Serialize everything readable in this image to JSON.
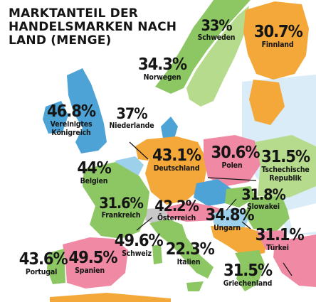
{
  "map": {
    "title": "MARKTANTEIL DER HANDELSMARKEN NACH LAND (MENGE)",
    "colors": {
      "sea": "#ffffff",
      "blue": "#4ea3d6",
      "light_blue": "#9dd0ea",
      "orange": "#f4a83a",
      "pink": "#f08aa4",
      "green": "#8cc763",
      "gray": "#c8c8c8",
      "text": "#151515"
    },
    "countries": [
      {
        "name": "Schweden",
        "value": "33%",
        "share": 33,
        "region_color": "green"
      },
      {
        "name": "Finnland",
        "value": "30.7%",
        "share": 30.7,
        "region_color": "orange"
      },
      {
        "name": "Norwegen",
        "value": "34.3%",
        "share": 34.3,
        "region_color": "green"
      },
      {
        "name": "Vereinigtes\nKönigreich",
        "value": "46.8%",
        "share": 46.8,
        "region_color": "blue"
      },
      {
        "name": "Niederlande",
        "value": "37%",
        "share": 37,
        "region_color": "orange"
      },
      {
        "name": "Belgien",
        "value": "44%",
        "share": 44,
        "region_color": "light_blue"
      },
      {
        "name": "Deutschland",
        "value": "43.1%",
        "share": 43.1,
        "region_color": "orange"
      },
      {
        "name": "Polen",
        "value": "30.6%",
        "share": 30.6,
        "region_color": "pink"
      },
      {
        "name": "Tschechische\nRepublik",
        "value": "31.5%",
        "share": 31.5,
        "region_color": "blue"
      },
      {
        "name": "Slowakei",
        "value": "31.8%",
        "share": 31.8,
        "region_color": "green"
      },
      {
        "name": "Frankreich",
        "value": "31.6%",
        "share": 31.6,
        "region_color": "green"
      },
      {
        "name": "Österreich",
        "value": "42.2%",
        "share": 42.2,
        "region_color": "pink"
      },
      {
        "name": "Ungarn",
        "value": "34.8%",
        "share": 34.8,
        "region_color": "light_blue"
      },
      {
        "name": "Schweiz",
        "value": "49.6%",
        "share": 49.6,
        "region_color": "gray"
      },
      {
        "name": "Türkei",
        "value": "31.1%",
        "share": 31.1,
        "region_color": "pink"
      },
      {
        "name": "Portugal",
        "value": "43.6%",
        "share": 43.6,
        "region_color": "green"
      },
      {
        "name": "Spanien",
        "value": "49.5%",
        "share": 49.5,
        "region_color": "pink"
      },
      {
        "name": "Italien",
        "value": "22.3%",
        "share": 22.3,
        "region_color": "green"
      },
      {
        "name": "Griechenland",
        "value": "31.5%",
        "share": 31.5,
        "region_color": "green"
      }
    ]
  }
}
